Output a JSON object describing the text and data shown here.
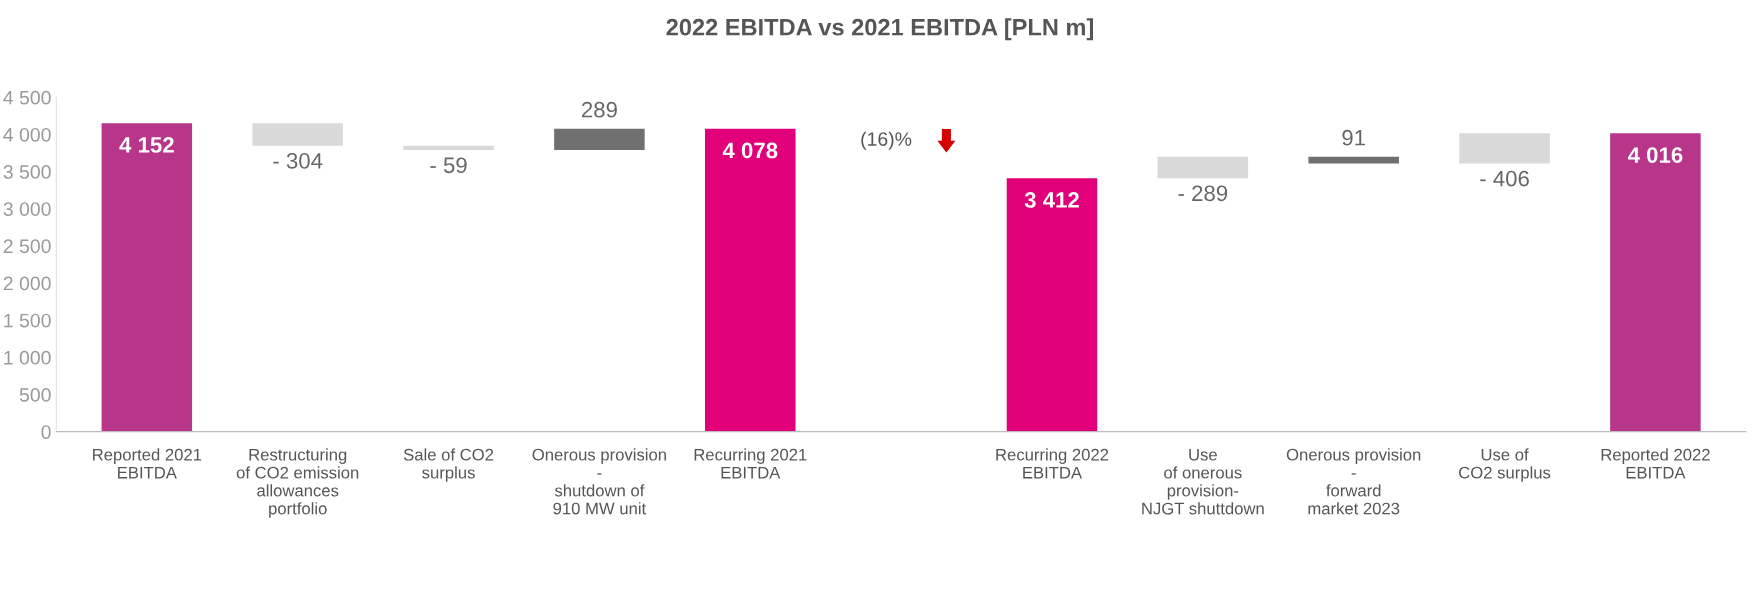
{
  "chart_data": {
    "type": "bar",
    "title": "2022 EBITDA vs 2021 EBITDA [PLN m]",
    "categories": [
      "Reported 2021\nEBITDA",
      "Restructuring\nof CO2 emission\nallowances\nportfolio",
      "Sale of CO2\nsurplus",
      "Onerous provision\n-\nshutdown of\n910 MW unit",
      "Recurring 2021\nEBITDA",
      null,
      "Recurring 2022\nEBITDA",
      "Use\nof onerous\nprovision-\nNJGT shuttdown",
      "Onerous provision\n-\nforward\nmarket 2023",
      "Use of\nCO2 surplus",
      "Reported 2022\nEBITDA"
    ],
    "values": [
      4152,
      -304,
      -59,
      289,
      4078,
      null,
      3412,
      -289,
      91,
      -406,
      4016
    ],
    "base": [
      0,
      4152,
      3848,
      3789,
      0,
      null,
      0,
      3701,
      3610,
      4016,
      0
    ],
    "colors": [
      "#b8368a",
      "#d9d9d9",
      "#d9d9d9",
      "#6f6f6f",
      "#e2007a",
      null,
      "#e2007a",
      "#d9d9d9",
      "#6f6f6f",
      "#d9d9d9",
      "#b8368a"
    ],
    "value_labels": [
      "4 152",
      "- 304",
      "- 59",
      "289",
      "4 078",
      null,
      "3 412",
      "- 289",
      "91",
      "- 406",
      "4 016"
    ],
    "annotations": [
      "(16)%"
    ],
    "ylim": [
      0,
      4500
    ],
    "yticks": [
      {
        "value": 0,
        "label": "0"
      },
      {
        "value": 500,
        "label": "500"
      },
      {
        "value": 1000,
        "label": "1 000"
      },
      {
        "value": 1500,
        "label": "1 500"
      },
      {
        "value": 2000,
        "label": "2 000"
      },
      {
        "value": 2500,
        "label": "2 500"
      },
      {
        "value": 3000,
        "label": "3 000"
      },
      {
        "value": 3500,
        "label": "3 500"
      },
      {
        "value": 4000,
        "label": "4 000"
      },
      {
        "value": 4500,
        "label": "4 500"
      }
    ],
    "grid": false,
    "legend": false
  }
}
